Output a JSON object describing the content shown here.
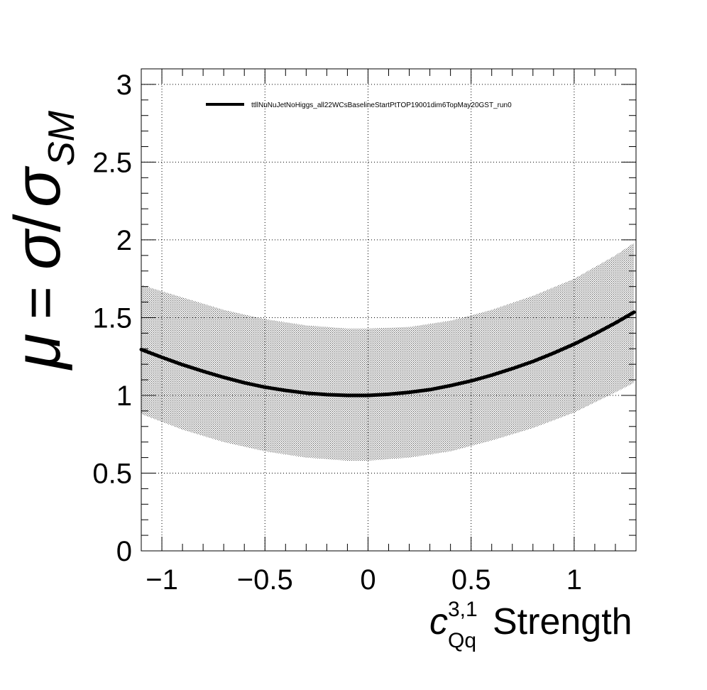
{
  "chart_data": {
    "type": "line",
    "title": "",
    "xlabel": {
      "symbol": "c",
      "superscript": "3,1",
      "subscript": "Qq",
      "text": "Strength"
    },
    "ylabel": {
      "mu": "μ",
      "equals": "=",
      "sigma": "σ",
      "slash": "/",
      "sigma_sm": "σ",
      "subscript": "SM"
    },
    "xlim": [
      -1.1,
      1.3
    ],
    "ylim": [
      0,
      3.1
    ],
    "x_ticks": [
      -1,
      -0.5,
      0,
      0.5,
      1
    ],
    "x_tick_labels": [
      "−1",
      "−0.5",
      "0",
      "0.5",
      "1"
    ],
    "y_ticks": [
      0,
      0.5,
      1,
      1.5,
      2,
      2.5,
      3
    ],
    "y_tick_labels": [
      "0",
      "0.5",
      "1",
      "1.5",
      "2",
      "2.5",
      "3"
    ],
    "grid": true,
    "legend_position": "top-left",
    "series": [
      {
        "name": "ttllNuNuJetNoHiggs_all22WCsBaselineStartPtTOP19001dim6TopMay20GST_run0",
        "color": "#000000",
        "x": [
          -1.1,
          -1.0,
          -0.9,
          -0.8,
          -0.7,
          -0.6,
          -0.5,
          -0.4,
          -0.3,
          -0.2,
          -0.1,
          0.0,
          0.1,
          0.2,
          0.3,
          0.4,
          0.5,
          0.6,
          0.7,
          0.8,
          0.9,
          1.0,
          1.1,
          1.2,
          1.29
        ],
        "values": [
          1.295,
          1.245,
          1.197,
          1.155,
          1.116,
          1.081,
          1.053,
          1.032,
          1.015,
          1.005,
          1.0,
          1.0,
          1.007,
          1.02,
          1.037,
          1.063,
          1.093,
          1.13,
          1.172,
          1.218,
          1.272,
          1.33,
          1.395,
          1.466,
          1.535
        ]
      }
    ],
    "band": {
      "color": "#b0b0b0",
      "x": [
        -1.1,
        -0.9,
        -0.7,
        -0.5,
        -0.3,
        -0.1,
        0.0,
        0.2,
        0.4,
        0.6,
        0.8,
        1.0,
        1.2,
        1.29
      ],
      "upper": [
        1.71,
        1.63,
        1.55,
        1.49,
        1.45,
        1.43,
        1.43,
        1.44,
        1.48,
        1.55,
        1.64,
        1.75,
        1.9,
        1.98
      ],
      "lower": [
        0.88,
        0.78,
        0.7,
        0.64,
        0.6,
        0.58,
        0.58,
        0.6,
        0.64,
        0.71,
        0.79,
        0.89,
        1.02,
        1.08
      ]
    }
  }
}
